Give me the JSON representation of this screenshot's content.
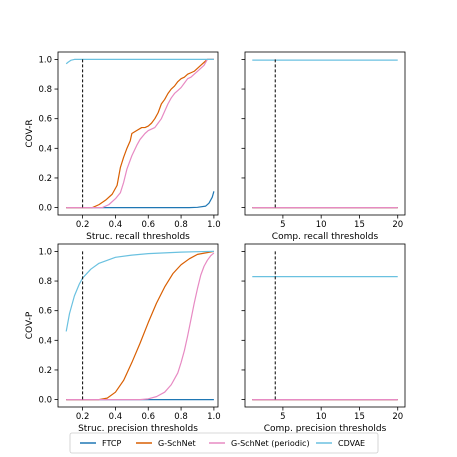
{
  "colors": {
    "FTCP": "#1f77b4",
    "G-SchNet": "#d95f02",
    "G-SchNet (periodic)": "#e78ac3",
    "CDVAE": "#6ac1e0",
    "threshold": "#000000"
  },
  "legend": {
    "placement": "bottom-center",
    "entries": [
      "FTCP",
      "G-SchNet",
      "G-SchNet (periodic)",
      "CDVAE"
    ]
  },
  "chart_data": [
    {
      "type": "line",
      "id": "struc-recall",
      "xlabel": "Struc. recall thresholds",
      "ylabel": "COV-R",
      "xlim": [
        0.05,
        1.025
      ],
      "ylim": [
        -0.05,
        1.05
      ],
      "xticks": [
        0.2,
        0.4,
        0.6,
        0.8,
        1.0
      ],
      "xticklabels": [
        "0.2",
        "0.4",
        "0.6",
        "0.8",
        "1.0"
      ],
      "yticks": [
        0.0,
        0.2,
        0.4,
        0.6,
        0.8,
        1.0
      ],
      "yticklabels": [
        "0.0",
        "0.2",
        "0.4",
        "0.6",
        "0.8",
        "1.0"
      ],
      "vline": 0.2,
      "grid": false,
      "series": [
        {
          "name": "FTCP",
          "x": [
            0.1,
            0.85,
            0.9,
            0.95,
            0.97,
            0.99,
            1.0
          ],
          "y": [
            0,
            0,
            0.002,
            0.01,
            0.03,
            0.07,
            0.11
          ]
        },
        {
          "name": "G-SchNet",
          "x": [
            0.1,
            0.26,
            0.3,
            0.34,
            0.38,
            0.41,
            0.43,
            0.45,
            0.47,
            0.49,
            0.5,
            0.53,
            0.56,
            0.58,
            0.6,
            0.62,
            0.64,
            0.66,
            0.68,
            0.7,
            0.72,
            0.74,
            0.76,
            0.78,
            0.8,
            0.82,
            0.84,
            0.86,
            0.88,
            0.9,
            0.92,
            0.94,
            0.96,
            1.0
          ],
          "y": [
            0,
            0,
            0.02,
            0.05,
            0.09,
            0.15,
            0.27,
            0.34,
            0.4,
            0.45,
            0.5,
            0.52,
            0.54,
            0.54,
            0.55,
            0.57,
            0.6,
            0.64,
            0.7,
            0.73,
            0.77,
            0.8,
            0.82,
            0.85,
            0.87,
            0.88,
            0.9,
            0.91,
            0.92,
            0.94,
            0.96,
            0.98,
            1.0,
            1.0
          ]
        },
        {
          "name": "G-SchNet (periodic)",
          "x": [
            0.1,
            0.32,
            0.36,
            0.4,
            0.43,
            0.45,
            0.47,
            0.5,
            0.53,
            0.55,
            0.58,
            0.6,
            0.62,
            0.64,
            0.66,
            0.68,
            0.7,
            0.72,
            0.74,
            0.76,
            0.78,
            0.8,
            0.82,
            0.84,
            0.86,
            0.88,
            0.9,
            0.92,
            0.94,
            0.96,
            1.0
          ],
          "y": [
            0,
            0,
            0.02,
            0.06,
            0.1,
            0.17,
            0.26,
            0.35,
            0.42,
            0.46,
            0.5,
            0.52,
            0.53,
            0.54,
            0.57,
            0.6,
            0.65,
            0.7,
            0.74,
            0.77,
            0.79,
            0.81,
            0.84,
            0.87,
            0.88,
            0.9,
            0.92,
            0.94,
            0.96,
            1.0,
            1.0
          ]
        },
        {
          "name": "CDVAE",
          "x": [
            0.1,
            0.11,
            0.13,
            0.15,
            1.0
          ],
          "y": [
            0.97,
            0.98,
            0.995,
            1.0,
            1.0
          ]
        }
      ]
    },
    {
      "type": "line",
      "id": "comp-recall",
      "xlabel": "Comp. recall thresholds",
      "ylabel": "",
      "xlim": [
        0.05,
        20.95
      ],
      "ylim": [
        -0.05,
        1.05
      ],
      "xticks": [
        5,
        10,
        15,
        20
      ],
      "xticklabels": [
        "5",
        "10",
        "15",
        "20"
      ],
      "yticks": [
        0.0,
        0.2,
        0.4,
        0.6,
        0.8,
        1.0
      ],
      "yticklabels": [],
      "vline": 4,
      "grid": false,
      "series": [
        {
          "name": "FTCP",
          "x": [
            1,
            20
          ],
          "y": [
            0,
            0
          ]
        },
        {
          "name": "G-SchNet",
          "x": [
            1,
            20
          ],
          "y": [
            0,
            0
          ]
        },
        {
          "name": "G-SchNet (periodic)",
          "x": [
            1,
            20
          ],
          "y": [
            0,
            0
          ]
        },
        {
          "name": "CDVAE",
          "x": [
            1,
            20
          ],
          "y": [
            0.995,
            0.995
          ]
        }
      ]
    },
    {
      "type": "line",
      "id": "struc-precision",
      "xlabel": "Struc. precision thresholds",
      "ylabel": "COV-P",
      "xlim": [
        0.05,
        1.025
      ],
      "ylim": [
        -0.05,
        1.05
      ],
      "xticks": [
        0.2,
        0.4,
        0.6,
        0.8,
        1.0
      ],
      "xticklabels": [
        "0.2",
        "0.4",
        "0.6",
        "0.8",
        "1.0"
      ],
      "yticks": [
        0.0,
        0.2,
        0.4,
        0.6,
        0.8,
        1.0
      ],
      "yticklabels": [
        "0.0",
        "0.2",
        "0.4",
        "0.6",
        "0.8",
        "1.0"
      ],
      "vline": 0.2,
      "grid": false,
      "series": [
        {
          "name": "FTCP",
          "x": [
            0.1,
            1.0
          ],
          "y": [
            0,
            0
          ]
        },
        {
          "name": "G-SchNet",
          "x": [
            0.1,
            0.3,
            0.35,
            0.4,
            0.45,
            0.5,
            0.55,
            0.6,
            0.65,
            0.7,
            0.75,
            0.8,
            0.85,
            0.9,
            0.95,
            1.0
          ],
          "y": [
            0,
            0,
            0.01,
            0.05,
            0.13,
            0.25,
            0.38,
            0.52,
            0.65,
            0.76,
            0.85,
            0.91,
            0.95,
            0.98,
            0.99,
            1.0
          ]
        },
        {
          "name": "G-SchNet (periodic)",
          "x": [
            0.1,
            0.55,
            0.6,
            0.65,
            0.7,
            0.74,
            0.78,
            0.8,
            0.82,
            0.84,
            0.86,
            0.88,
            0.9,
            0.92,
            0.94,
            0.96,
            0.98,
            1.0
          ],
          "y": [
            0,
            0,
            0.005,
            0.02,
            0.05,
            0.1,
            0.18,
            0.25,
            0.33,
            0.43,
            0.54,
            0.65,
            0.75,
            0.84,
            0.9,
            0.94,
            0.97,
            0.99
          ]
        },
        {
          "name": "CDVAE",
          "x": [
            0.1,
            0.12,
            0.15,
            0.18,
            0.2,
            0.25,
            0.3,
            0.35,
            0.4,
            0.5,
            0.6,
            0.7,
            0.8,
            0.9,
            1.0
          ],
          "y": [
            0.46,
            0.58,
            0.7,
            0.78,
            0.82,
            0.88,
            0.92,
            0.94,
            0.96,
            0.975,
            0.985,
            0.99,
            0.995,
            0.998,
            1.0
          ]
        }
      ]
    },
    {
      "type": "line",
      "id": "comp-precision",
      "xlabel": "Comp. precision thresholds",
      "ylabel": "",
      "xlim": [
        0.05,
        20.95
      ],
      "ylim": [
        -0.05,
        1.05
      ],
      "xticks": [
        5,
        10,
        15,
        20
      ],
      "xticklabels": [
        "5",
        "10",
        "15",
        "20"
      ],
      "yticks": [
        0.0,
        0.2,
        0.4,
        0.6,
        0.8,
        1.0
      ],
      "yticklabels": [],
      "vline": 4,
      "grid": false,
      "series": [
        {
          "name": "FTCP",
          "x": [
            1,
            20
          ],
          "y": [
            0,
            0
          ]
        },
        {
          "name": "G-SchNet",
          "x": [
            1,
            20
          ],
          "y": [
            0,
            0
          ]
        },
        {
          "name": "G-SchNet (periodic)",
          "x": [
            1,
            20
          ],
          "y": [
            0,
            0
          ]
        },
        {
          "name": "CDVAE",
          "x": [
            1,
            20
          ],
          "y": [
            0.83,
            0.83
          ]
        }
      ]
    }
  ]
}
